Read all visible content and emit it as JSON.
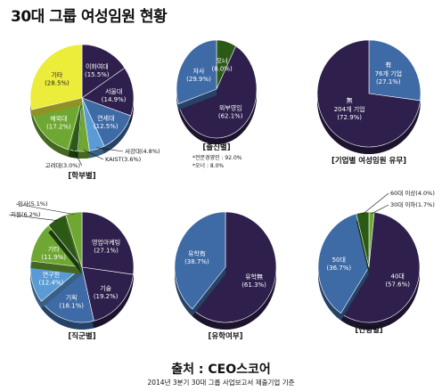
{
  "title": "30대 그룹 여성임원 현황",
  "source": "출처 : CEO스코어",
  "subsource": "2014년 3분기 30대 그룹 사업보고서 제출기업 기준",
  "colors": {
    "dark_purple": "#2e1f4c",
    "mid_blue": "#3e6aa6",
    "light_blue": "#5a9bd5",
    "green": "#6ea833",
    "dark_green": "#2b5a17",
    "yellow": "#ecec3a",
    "olive_side": "#8f9b2c"
  },
  "chart_data": [
    {
      "type": "pie",
      "caption": "[학부별]",
      "slices": [
        {
          "label": "이화여대",
          "value": 15.5,
          "text": "(15.5%)",
          "color": "#2e1f4c"
        },
        {
          "label": "서울대",
          "value": 14.9,
          "text": "(14.9%)",
          "color": "#2e1f4c"
        },
        {
          "label": "연세대",
          "value": 12.5,
          "text": "(12.5%)",
          "color": "#3e6aa6"
        },
        {
          "label": "서강대",
          "value": 4.8,
          "text": "(4.8%)",
          "color": "#5a9bd5"
        },
        {
          "label": "KAIST",
          "value": 3.6,
          "text": "(3.6%)",
          "color": "#6ea833"
        },
        {
          "label": "고려대",
          "value": 3.0,
          "text": "(3.0%)",
          "color": "#2b5a17"
        },
        {
          "label": "해외대",
          "value": 17.2,
          "text": "(17.2%)",
          "color": "#6ea833"
        },
        {
          "label": "기타",
          "value": 28.5,
          "text": "(28.5%)",
          "color": "#ecec3a"
        }
      ]
    },
    {
      "type": "pie",
      "caption": "[출신별]",
      "notes": [
        "*전문경영인 : 92.0%",
        "*오너 : 8.0%"
      ],
      "slices": [
        {
          "label": "오너",
          "value": 8.0,
          "text": "(8.0%)",
          "color": "#2b5a17"
        },
        {
          "label": "외부영입",
          "value": 62.1,
          "text": "(62.1%)",
          "color": "#2e1f4c"
        },
        {
          "label": "자사",
          "value": 29.9,
          "text": "(29.9%)",
          "color": "#3e6aa6"
        }
      ]
    },
    {
      "type": "pie",
      "caption": "[기업별 여성임원 유무]",
      "slices": [
        {
          "label": "76개 기업",
          "value": 27.1,
          "text": "(27.1%)",
          "tag": "有",
          "color": "#3e6aa6"
        },
        {
          "label": "204개 기업",
          "value": 72.9,
          "text": "(72.9%)",
          "tag": "無",
          "color": "#2e1f4c"
        }
      ]
    },
    {
      "type": "pie",
      "caption": "[직군별]",
      "slices": [
        {
          "label": "영업마케팅",
          "value": 27.1,
          "text": "(27.1%)",
          "color": "#2e1f4c"
        },
        {
          "label": "기술",
          "value": 19.2,
          "text": "(19.2%)",
          "color": "#2e1f4c"
        },
        {
          "label": "기획",
          "value": 18.1,
          "text": "(18.1%)",
          "color": "#3e6aa6"
        },
        {
          "label": "연구원",
          "value": 12.4,
          "text": "(12.4%)",
          "color": "#5a9bd5"
        },
        {
          "label": "기타",
          "value": 11.9,
          "text": "(11.9%)",
          "color": "#6ea833"
        },
        {
          "label": "지원",
          "value": 6.2,
          "text": "(6.2%)",
          "color": "#2b5a17"
        },
        {
          "label": "인사",
          "value": 5.1,
          "text": "(5.1%)",
          "color": "#6ea833"
        }
      ]
    },
    {
      "type": "pie",
      "caption": "[유학여부]",
      "slices": [
        {
          "label": "유학",
          "value": 61.3,
          "text": "(61.3%)",
          "tag": "無",
          "color": "#2e1f4c"
        },
        {
          "label": "유학",
          "value": 38.7,
          "text": "(38.7%)",
          "tag": "有",
          "color": "#3e6aa6"
        }
      ]
    },
    {
      "type": "pie",
      "caption": "[연령별]",
      "slices": [
        {
          "label": "30대 이하",
          "value": 1.7,
          "text": "(1.7%)",
          "color": "#6ea833"
        },
        {
          "label": "40대",
          "value": 57.6,
          "text": "(57.6%)",
          "color": "#2e1f4c"
        },
        {
          "label": "50대",
          "value": 36.7,
          "text": "(36.7%)",
          "color": "#3e6aa6"
        },
        {
          "label": "60대 이상",
          "value": 4.0,
          "text": "(4.0%)",
          "color": "#2b5a17"
        }
      ]
    }
  ]
}
